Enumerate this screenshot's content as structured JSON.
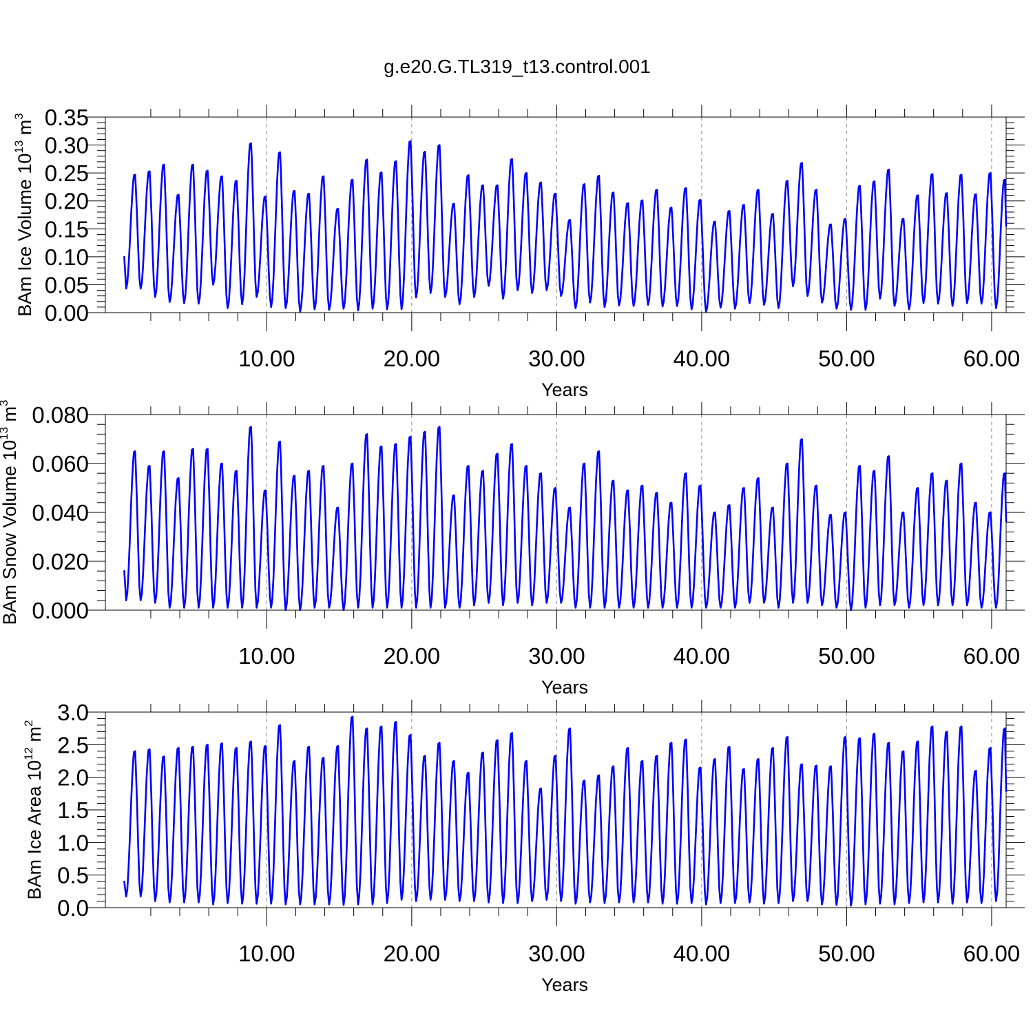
{
  "title": "g.e20.G.TL319_t13.control.001",
  "chart_data": [
    {
      "type": "line",
      "ylabel": {
        "base": "BAm Ice Volume 10",
        "exp": "13",
        "unit": " m",
        "unit_exp": "3"
      },
      "xlabel": "Years",
      "xlim": [
        0.15,
        61.0
      ],
      "ylim": [
        0.0,
        0.35
      ],
      "yticks": [
        "0.00",
        "0.05",
        "0.10",
        "0.15",
        "0.20",
        "0.25",
        "0.30",
        "0.35"
      ],
      "xticks": [
        "10.00",
        "20.00",
        "30.00",
        "40.00",
        "50.00",
        "60.00"
      ],
      "grid_x": [
        10,
        20,
        30,
        40,
        50,
        60
      ],
      "series_color": "#0000ff",
      "start_value": 0.1,
      "maxima": [
        0.247,
        0.253,
        0.265,
        0.211,
        0.265,
        0.254,
        0.244,
        0.236,
        0.303,
        0.208,
        0.287,
        0.218,
        0.213,
        0.244,
        0.186,
        0.238,
        0.274,
        0.251,
        0.271,
        0.307,
        0.288,
        0.3,
        0.195,
        0.246,
        0.228,
        0.228,
        0.275,
        0.25,
        0.233,
        0.213,
        0.166,
        0.23,
        0.245,
        0.215,
        0.196,
        0.201,
        0.22,
        0.188,
        0.223,
        0.202,
        0.163,
        0.182,
        0.193,
        0.22,
        0.177,
        0.236,
        0.268,
        0.22,
        0.158,
        0.168,
        0.227,
        0.235,
        0.256,
        0.168,
        0.21,
        0.248,
        0.214,
        0.247,
        0.212,
        0.25,
        0.238
      ],
      "minima": [
        0.043,
        0.028,
        0.019,
        0.017,
        0.016,
        0.05,
        0.008,
        0.015,
        0.028,
        0.01,
        0.008,
        0.002,
        0.006,
        0.005,
        0.007,
        0.004,
        0.007,
        0.006,
        0.006,
        0.027,
        0.035,
        0.028,
        0.015,
        0.028,
        0.048,
        0.025,
        0.04,
        0.035,
        0.04,
        0.03,
        0.008,
        0.018,
        0.01,
        0.013,
        0.012,
        0.014,
        0.011,
        0.012,
        0.006,
        0.002,
        0.009,
        0.007,
        0.017,
        0.014,
        0.008,
        0.047,
        0.03,
        0.018,
        0.007,
        0.005,
        0.005,
        0.025,
        0.012,
        0.006,
        0.017,
        0.016,
        0.012,
        0.017,
        0.016,
        0.008
      ]
    },
    {
      "type": "line",
      "ylabel": {
        "base": "BAm Snow Volume 10",
        "exp": "13",
        "unit": " m",
        "unit_exp": "3"
      },
      "xlabel": "Years",
      "xlim": [
        0.15,
        61.0
      ],
      "ylim": [
        0.0,
        0.08
      ],
      "yticks": [
        "0.000",
        "0.020",
        "0.040",
        "0.060",
        "0.080"
      ],
      "xticks": [
        "10.00",
        "20.00",
        "30.00",
        "40.00",
        "50.00",
        "60.00"
      ],
      "grid_x": [
        10,
        20,
        30,
        40,
        50,
        60
      ],
      "series_color": "#0000ff",
      "start_value": 0.016,
      "maxima": [
        0.065,
        0.059,
        0.065,
        0.054,
        0.066,
        0.066,
        0.06,
        0.057,
        0.075,
        0.049,
        0.069,
        0.055,
        0.057,
        0.059,
        0.042,
        0.06,
        0.072,
        0.067,
        0.068,
        0.071,
        0.073,
        0.075,
        0.047,
        0.059,
        0.057,
        0.064,
        0.068,
        0.059,
        0.056,
        0.05,
        0.042,
        0.06,
        0.065,
        0.053,
        0.049,
        0.051,
        0.048,
        0.044,
        0.056,
        0.051,
        0.04,
        0.043,
        0.05,
        0.054,
        0.042,
        0.06,
        0.07,
        0.051,
        0.039,
        0.04,
        0.059,
        0.057,
        0.063,
        0.04,
        0.05,
        0.056,
        0.053,
        0.06,
        0.044,
        0.04,
        0.056
      ],
      "minima": [
        0.004,
        0.003,
        0.001,
        0.001,
        0.001,
        0.001,
        0.001,
        0.001,
        0.001,
        0.001,
        0.0,
        0.0,
        0.001,
        0.001,
        0.0,
        0.001,
        0.001,
        0.001,
        0.001,
        0.001,
        0.001,
        0.001,
        0.001,
        0.002,
        0.003,
        0.002,
        0.003,
        0.002,
        0.003,
        0.003,
        0.001,
        0.001,
        0.001,
        0.001,
        0.001,
        0.001,
        0.001,
        0.001,
        0.001,
        0.001,
        0.001,
        0.001,
        0.003,
        0.003,
        0.001,
        0.003,
        0.003,
        0.002,
        0.001,
        0.0,
        0.001,
        0.002,
        0.002,
        0.001,
        0.002,
        0.002,
        0.002,
        0.002,
        0.001,
        0.001
      ]
    },
    {
      "type": "line",
      "ylabel": {
        "base": "BAm Ice Area 10",
        "exp": "12",
        "unit": " m",
        "unit_exp": "2"
      },
      "xlabel": "Years",
      "xlim": [
        0.15,
        61.0
      ],
      "ylim": [
        0.0,
        3.0
      ],
      "yticks": [
        "0.0",
        "0.5",
        "1.0",
        "1.5",
        "2.0",
        "2.5",
        "3.0"
      ],
      "xticks": [
        "10.00",
        "20.00",
        "30.00",
        "40.00",
        "50.00",
        "60.00"
      ],
      "grid_x": [
        10,
        20,
        30,
        40,
        50,
        60
      ],
      "series_color": "#0000ff",
      "start_value": 0.4,
      "maxima": [
        2.4,
        2.43,
        2.32,
        2.45,
        2.47,
        2.5,
        2.52,
        2.45,
        2.55,
        2.48,
        2.8,
        2.25,
        2.47,
        2.3,
        2.48,
        2.93,
        2.75,
        2.78,
        2.85,
        2.65,
        2.33,
        2.53,
        2.25,
        2.07,
        2.38,
        2.57,
        2.68,
        2.25,
        1.83,
        2.33,
        2.75,
        1.95,
        2.03,
        2.17,
        2.45,
        2.25,
        2.33,
        2.53,
        2.58,
        2.15,
        2.28,
        2.47,
        2.13,
        2.28,
        2.45,
        2.62,
        2.2,
        2.18,
        2.17,
        2.62,
        2.6,
        2.67,
        2.53,
        2.4,
        2.55,
        2.78,
        2.7,
        2.78,
        2.1,
        2.45,
        2.75
      ],
      "minima": [
        0.17,
        0.1,
        0.08,
        0.08,
        0.08,
        0.05,
        0.07,
        0.06,
        0.06,
        0.06,
        0.05,
        0.05,
        0.05,
        0.05,
        0.04,
        0.05,
        0.05,
        0.07,
        0.12,
        0.1,
        0.12,
        0.12,
        0.1,
        0.1,
        0.08,
        0.07,
        0.07,
        0.1,
        0.12,
        0.1,
        0.06,
        0.08,
        0.07,
        0.08,
        0.08,
        0.08,
        0.06,
        0.06,
        0.07,
        0.05,
        0.07,
        0.07,
        0.08,
        0.06,
        0.07,
        0.1,
        0.1,
        0.05,
        0.04,
        0.03,
        0.05,
        0.06,
        0.05,
        0.07,
        0.08,
        0.08,
        0.06,
        0.08,
        0.07,
        0.1
      ]
    }
  ]
}
